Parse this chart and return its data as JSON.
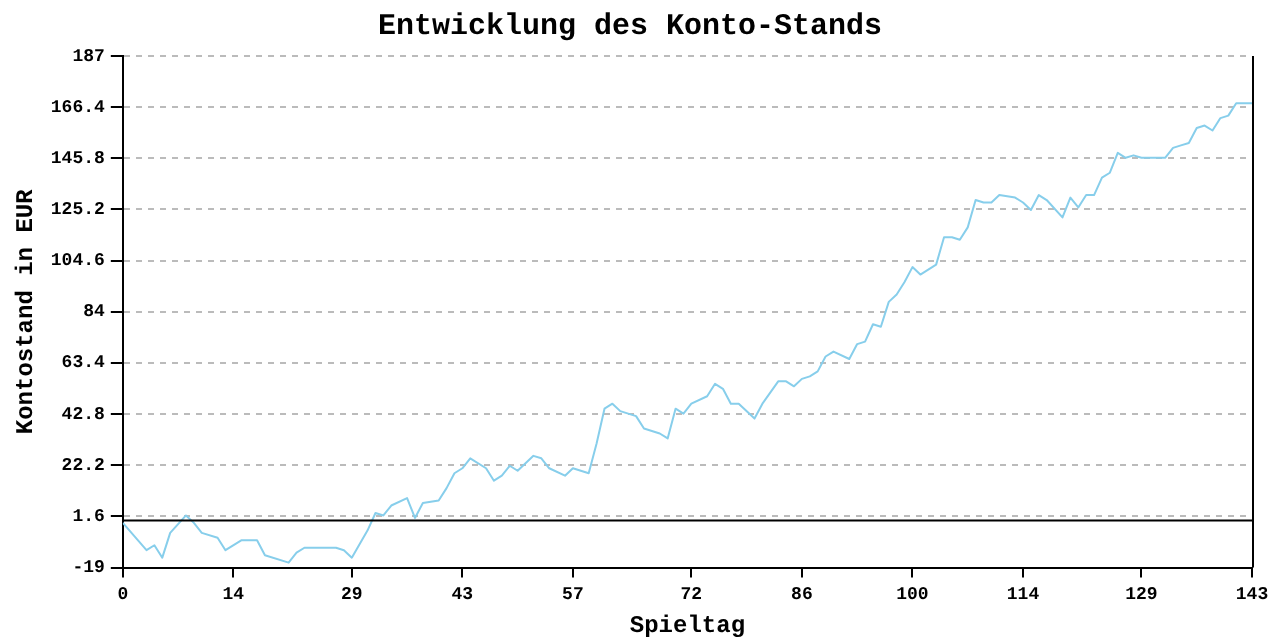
{
  "chart_data": {
    "type": "line",
    "title": "Entwicklung des Konto-Stands",
    "xlabel": "Spieltag",
    "ylabel": "Kontostand in EUR",
    "xlim": [
      0,
      143
    ],
    "xticks": [
      0,
      14,
      29,
      43,
      57,
      72,
      86,
      100,
      114,
      129,
      143
    ],
    "ylim": [
      -19,
      187
    ],
    "yticks": [
      -19,
      1.6,
      22.2,
      42.8,
      63.4,
      84,
      104.6,
      125.2,
      145.8,
      166.4,
      187
    ],
    "grid": "y",
    "legend": false,
    "marker": "none",
    "line_style": "solid",
    "ref_lines": [
      {
        "axis": "y",
        "value": 0,
        "color": "#000000"
      }
    ],
    "series": [
      {
        "color": "#87ceeb",
        "x": [
          0,
          3,
          4,
          5,
          6,
          8,
          9,
          10,
          12,
          13,
          15,
          17,
          18,
          21,
          22,
          23,
          27,
          28,
          29,
          31,
          32,
          33,
          34,
          36,
          37,
          38,
          40,
          41,
          42,
          43,
          44,
          46,
          47,
          48,
          49,
          50,
          52,
          53,
          54,
          56,
          57,
          59,
          60,
          61,
          62,
          63,
          65,
          66,
          68,
          69,
          70,
          71,
          72,
          74,
          75,
          76,
          77,
          78,
          80,
          81,
          83,
          84,
          85,
          86,
          87,
          88,
          89,
          90,
          92,
          93,
          94,
          95,
          96,
          97,
          98,
          99,
          100,
          101,
          103,
          104,
          105,
          106,
          107,
          108,
          109,
          110,
          111,
          113,
          114,
          115,
          116,
          117,
          119,
          120,
          121,
          122,
          123,
          124,
          125,
          126,
          127,
          128,
          129,
          132,
          133,
          134,
          135,
          136,
          137,
          138,
          139,
          140,
          141,
          143
        ],
        "values": [
          -1,
          -12,
          -10,
          -15,
          -5,
          2,
          -1,
          -5,
          -7,
          -12,
          -8,
          -8,
          -14,
          -17,
          -13,
          -11,
          -11,
          -12,
          -15,
          -4,
          3,
          2,
          6,
          9,
          1,
          7,
          8,
          13,
          19,
          21,
          25,
          21,
          16,
          18,
          22,
          20,
          26,
          25,
          21,
          18,
          21,
          19,
          31,
          45,
          47,
          44,
          42,
          37,
          35,
          33,
          45,
          43,
          47,
          50,
          55,
          53,
          47,
          47,
          41,
          47,
          56,
          56,
          54,
          57,
          58,
          60,
          66,
          68,
          65,
          71,
          72,
          79,
          78,
          88,
          91,
          96,
          102,
          99,
          103,
          114,
          114,
          113,
          118,
          129,
          128,
          128,
          131,
          130,
          128,
          125,
          131,
          129,
          122,
          130,
          126,
          131,
          131,
          138,
          140,
          148,
          146,
          147,
          146,
          146,
          150,
          151,
          152,
          158,
          159,
          157,
          162,
          163,
          168,
          168
        ]
      }
    ]
  }
}
